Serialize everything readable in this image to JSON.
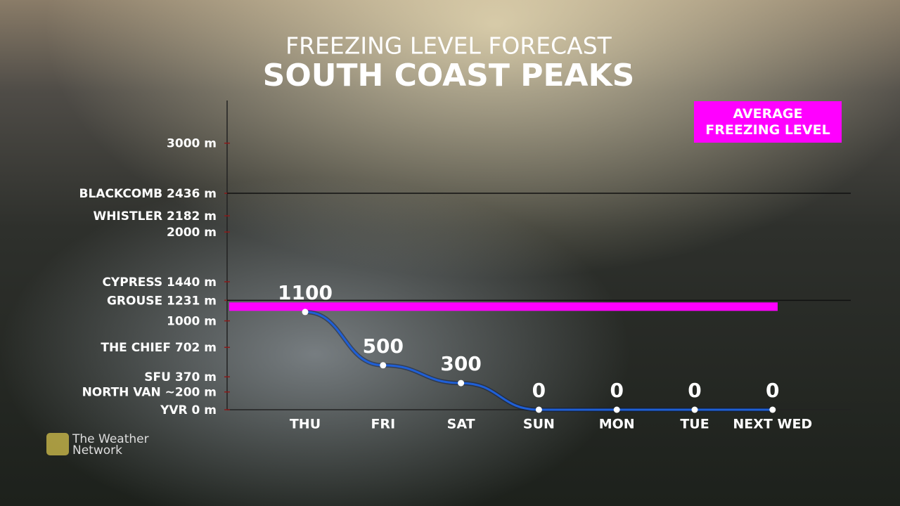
{
  "chart_data": {
    "type": "line",
    "title": "FREEZING LEVEL FORECAST",
    "subtitle": "SOUTH COAST PEAKS",
    "categories": [
      "THU",
      "FRI",
      "SAT",
      "SUN",
      "MON",
      "TUE",
      "NEXT WED"
    ],
    "series": [
      {
        "name": "Freezing level",
        "color": "#1f5fd6",
        "values": [
          1100,
          500,
          300,
          0,
          0,
          0,
          0
        ]
      }
    ],
    "reference": {
      "name": "AVERAGE FREEZING LEVEL",
      "value": 1160,
      "color": "#ff00ff"
    },
    "ylim": [
      0,
      3480
    ],
    "yticks": [
      {
        "value": 3000,
        "label": "3000 m"
      },
      {
        "value": 2436,
        "label": "BLACKCOMB 2436 m"
      },
      {
        "value": 2182,
        "label": "WHISTLER 2182 m"
      },
      {
        "value": 2000,
        "label": "2000 m"
      },
      {
        "value": 1440,
        "label": "CYPRESS 1440 m"
      },
      {
        "value": 1231,
        "label": "GROUSE 1231 m"
      },
      {
        "value": 1000,
        "label": "1000 m"
      },
      {
        "value": 702,
        "label": "THE CHIEF 702 m"
      },
      {
        "value": 370,
        "label": "SFU 370 m"
      },
      {
        "value": 200,
        "label": "NORTH VAN ~200 m"
      },
      {
        "value": 0,
        "label": "YVR 0 m"
      }
    ],
    "marked_levels": [
      1,
      5
    ],
    "logo": [
      "The Weather",
      "Network"
    ]
  }
}
